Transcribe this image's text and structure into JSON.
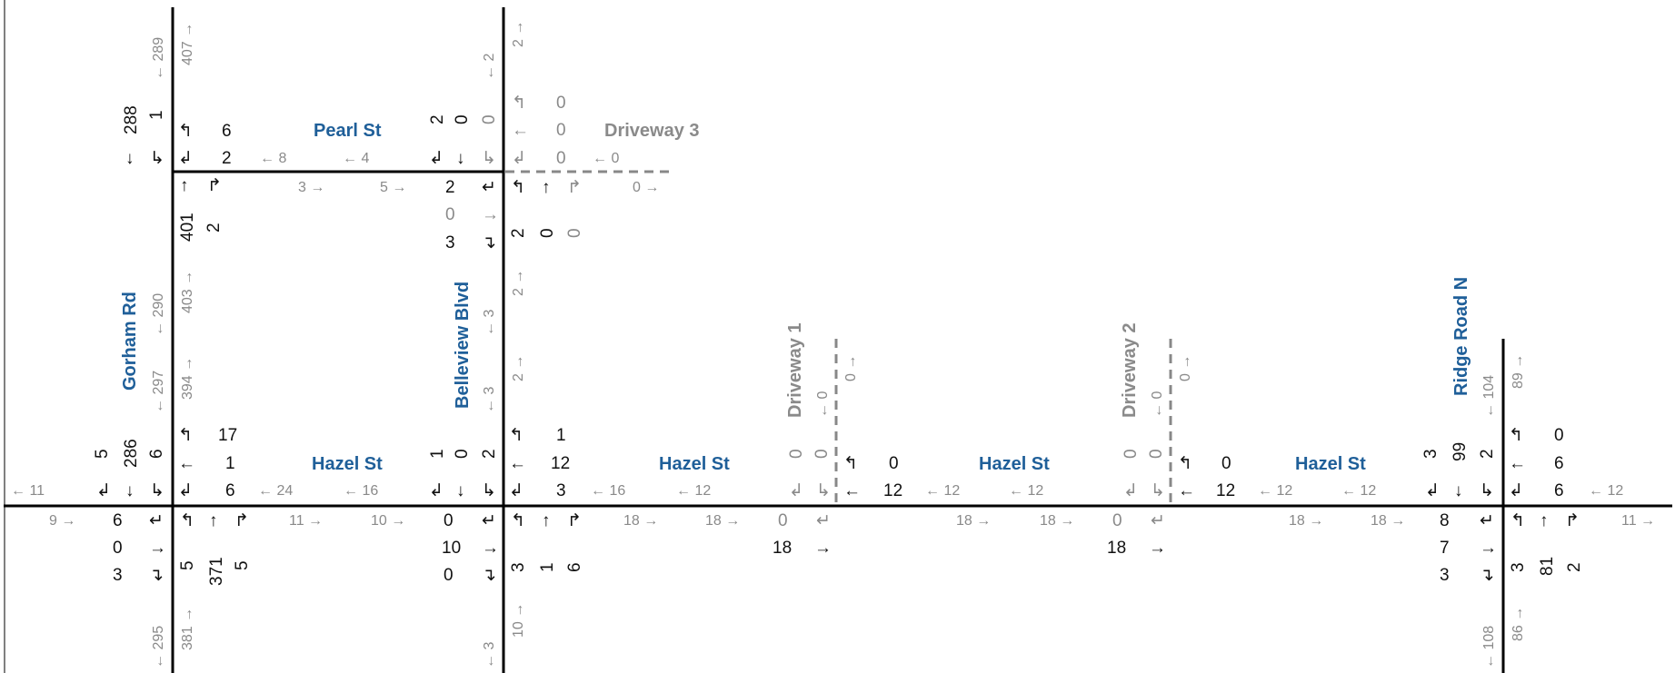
{
  "colors": {
    "road": "#000000",
    "driveway": "#888888",
    "street_label": "#1f5f99",
    "flow": "#8a8a8a",
    "volume": "#111111"
  },
  "streets": {
    "pearl": "Pearl St",
    "hazel": "Hazel St",
    "driveway3": "Driveway 3",
    "gorham": "Gorham Rd",
    "belleview": "Belleview Blvd",
    "driveway1": "Driveway 1",
    "driveway2": "Driveway 2",
    "ridge": "Ridge Road N"
  },
  "int_gorham_pearl": {
    "sb_thru": "288",
    "sb_right": "1",
    "wb_left": "6",
    "wb_right": "2",
    "nb_thru": "401",
    "nb_right": "2"
  },
  "int_belleview_pearl": {
    "sb_a": "2",
    "sb_b": "0",
    "sb_c": "0",
    "eb_left": "2",
    "eb_thru": "0",
    "eb_right": "3",
    "nb_left": "2",
    "nb_thru": "0",
    "nb_right": "0"
  },
  "driveway3": {
    "wb_left": "0",
    "wb_thru": "0",
    "wb_right": "0",
    "wb_flow": "0",
    "eb_flow": "0"
  },
  "pearl_flows": {
    "wb1": "8",
    "wb2": "4",
    "eb1": "3",
    "eb2": "5"
  },
  "gorham_flows": {
    "n_sb": "289",
    "n_nb": "407",
    "m_sb": "290",
    "m_nb": "403",
    "s_sb": "297",
    "s_nb": "394",
    "b_sb": "295",
    "b_nb": "381"
  },
  "belleview_flows": {
    "n_sb": "2",
    "n_nb": "2",
    "m_sb": "3",
    "m_nb": "2",
    "s_sb": "3",
    "s_nb": "2",
    "b_sb": "3",
    "b_nb": "10"
  },
  "int_gorham_hazel": {
    "sb_right": "5",
    "sb_thru": "286",
    "sb_left": "6",
    "wb_left": "17",
    "wb_thru": "1",
    "wb_right": "6",
    "eb_left": "6",
    "eb_thru": "0",
    "eb_right": "3",
    "nb_left": "5",
    "nb_thru": "371",
    "nb_right": "5"
  },
  "int_belleview_hazel": {
    "sb_right": "1",
    "sb_thru": "0",
    "sb_left": "2",
    "wb_left": "1",
    "wb_thru": "12",
    "wb_right": "3",
    "eb_left": "0",
    "eb_thru": "10",
    "eb_right": "0",
    "nb_left": "3",
    "nb_thru": "1",
    "nb_right": "6"
  },
  "int_dw1": {
    "sb_a": "0",
    "sb_b": "0",
    "wb_left": "0",
    "wb_thru": "12",
    "eb_left": "0",
    "eb_thru": "18",
    "sb_flow": "0",
    "nb_flow": "0"
  },
  "int_dw2": {
    "sb_a": "0",
    "sb_b": "0",
    "wb_left": "0",
    "wb_thru": "12",
    "eb_left": "0",
    "eb_thru": "18",
    "sb_flow": "0",
    "nb_flow": "0"
  },
  "int_ridge_hazel": {
    "sb_right": "3",
    "sb_thru": "99",
    "sb_left": "2",
    "wb_left": "0",
    "wb_thru": "6",
    "wb_right": "6",
    "eb_left": "8",
    "eb_thru": "7",
    "eb_right": "3",
    "nb_left": "3",
    "nb_thru": "81",
    "nb_right": "2"
  },
  "ridge_flows": {
    "n_sb": "104",
    "n_nb": "89",
    "s_sb": "108",
    "s_nb": "86"
  },
  "dw_flows": {
    "dw1_sb": "0",
    "dw1_nb": "0",
    "dw2_sb": "0",
    "dw2_nb": "0"
  },
  "hazel_flows": {
    "far_w_wb": "11",
    "far_w_eb": "9",
    "s1_wb1": "24",
    "s1_wb2": "16",
    "s1_eb1": "11",
    "s1_eb2": "10",
    "s2_wb1": "16",
    "s2_wb2": "12",
    "s2_eb1": "18",
    "s2_eb2": "18",
    "s3_wb1": "12",
    "s3_wb2": "12",
    "s3_eb1": "18",
    "s3_eb2": "18",
    "s4_wb1": "12",
    "s4_wb2": "12",
    "s4_eb1": "18",
    "s4_eb2": "18",
    "far_e_wb": "12",
    "far_e_eb": "11"
  }
}
